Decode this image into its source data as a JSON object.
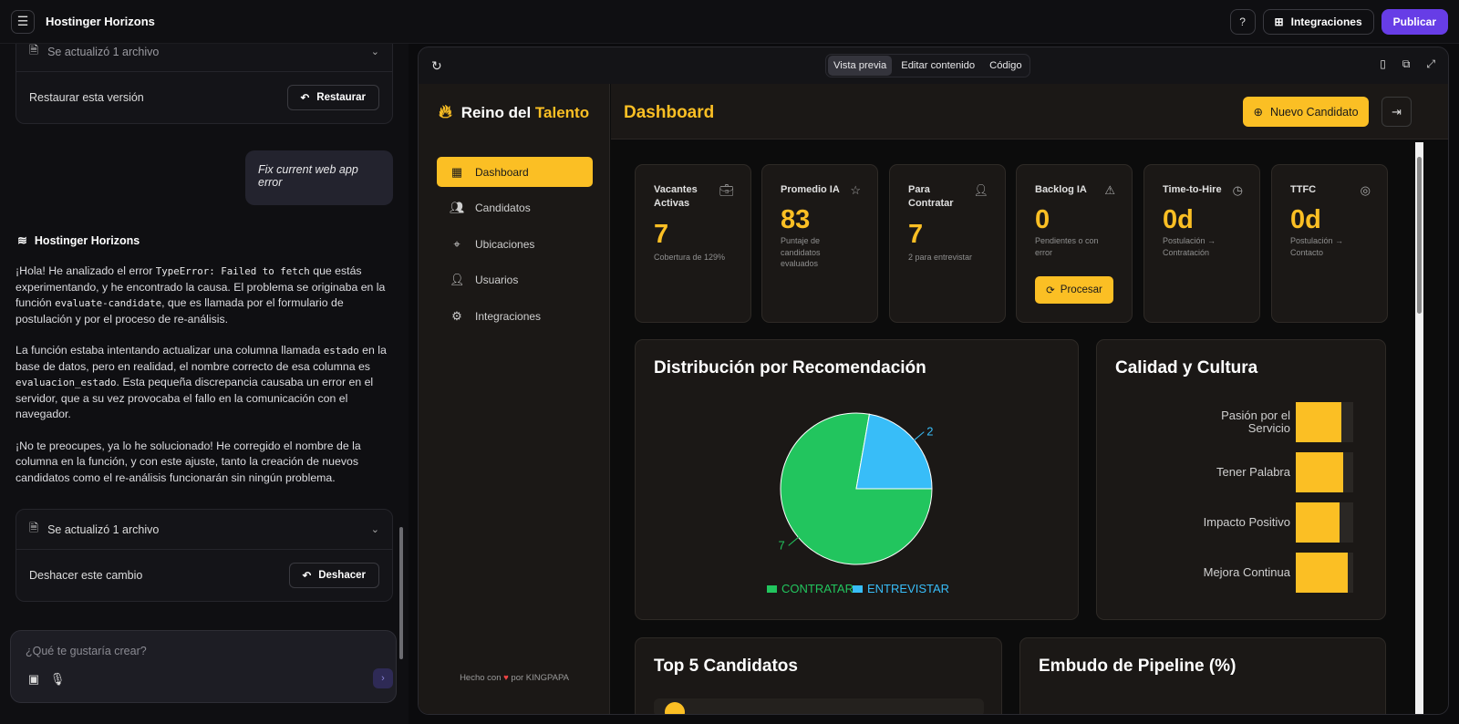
{
  "topbar": {
    "app_title": "Hostinger Horizons",
    "integrations_label": "Integraciones",
    "publish_label": "Publicar"
  },
  "chat": {
    "card_top": {
      "header": "Se actualizó 1 archivo",
      "body": "Restaurar esta versión",
      "action": "Restaurar"
    },
    "user_message": "Fix current web app error",
    "bot_name": "Hostinger Horizons",
    "paragraphs": [
      {
        "parts": [
          "¡Hola! He analizado el error ",
          "TypeError: Failed to fetch",
          " que estás experimentando, y he encontrado la causa. El problema se originaba en la función ",
          "evaluate-candidate",
          ", que es llamada por el formulario de postulación y por el proceso de re-análisis."
        ]
      },
      {
        "parts": [
          "La función estaba intentando actualizar una columna llamada ",
          "estado",
          " en la base de datos, pero en realidad, el nombre correcto de esa columna es ",
          "evaluacion_estado",
          ". Esta pequeña discrepancia causaba un error en el servidor, que a su vez provocaba el fallo en la comunicación con el navegador."
        ]
      },
      {
        "parts": [
          "¡No te preocupes, ya lo he solucionado! He corregido el nombre de la columna en la función, y con este ajuste, tanto la creación de nuevos candidatos como el re-análisis funcionarán sin ningún problema."
        ]
      }
    ],
    "card_bottom": {
      "header": "Se actualizó 1 archivo",
      "body": "Deshacer este cambio",
      "action": "Deshacer"
    },
    "prompt_placeholder": "¿Qué te gustaría crear?"
  },
  "preview": {
    "tabs": [
      {
        "label": "Vista previa",
        "active": true
      },
      {
        "label": "Editar contenido",
        "active": false
      },
      {
        "label": "Código",
        "active": false
      }
    ]
  },
  "app": {
    "brand_a": "Reino del ",
    "brand_b": "Talento",
    "nav": [
      {
        "label": "Dashboard",
        "icon": "dashboard-icon",
        "active": true
      },
      {
        "label": "Candidatos",
        "icon": "users-icon",
        "active": false
      },
      {
        "label": "Ubicaciones",
        "icon": "map-pin-icon",
        "active": false
      },
      {
        "label": "Usuarios",
        "icon": "user-cog-icon",
        "active": false
      },
      {
        "label": "Integraciones",
        "icon": "gear-icon",
        "active": false
      }
    ],
    "made_prefix": "Hecho con",
    "made_suffix": "por KINGPAPA",
    "page_title": "Dashboard",
    "new_candidate": "Nuevo Candidato",
    "stats": [
      {
        "label": "Vacantes Activas",
        "value": "7",
        "sub": "Cobertura de 129%",
        "icon": "briefcase-icon"
      },
      {
        "label": "Promedio IA",
        "value": "83",
        "sub": "Puntaje de candidatos evaluados",
        "icon": "star-icon"
      },
      {
        "label": "Para Contratar",
        "value": "7",
        "sub": "2 para entrevistar",
        "icon": "user-check-icon"
      },
      {
        "label": "Backlog IA",
        "value": "0",
        "sub": "Pendientes o con error",
        "icon": "alert-icon",
        "button": "Procesar"
      },
      {
        "label": "Time-to-Hire",
        "value": "0d",
        "sub": "Postulación → Contratación",
        "icon": "clock-icon"
      },
      {
        "label": "TTFC",
        "value": "0d",
        "sub": "Postulación → Contacto",
        "icon": "target-icon"
      }
    ],
    "pie_title": "Distribución por Recomendación",
    "quality_title": "Calidad y Cultura",
    "top_title": "Top 5 Candidatos",
    "funnel_title": "Embudo de Pipeline (%)"
  },
  "chart_data": [
    {
      "type": "pie",
      "title": "Distribución por Recomendación",
      "categories": [
        "CONTRATAR",
        "ENTREVISTAR"
      ],
      "values": [
        7,
        2
      ],
      "colors": [
        "#22c55e",
        "#38bdf8"
      ],
      "legend": "bottom"
    },
    {
      "type": "bar",
      "title": "Calidad y Cultura",
      "orientation": "horizontal",
      "categories": [
        "Pasión por el Servicio",
        "Tener Palabra",
        "Impacto Positivo",
        "Mejora Continua"
      ],
      "values": [
        0.8,
        0.83,
        0.76,
        0.9
      ],
      "color": "#fbbf24"
    }
  ]
}
